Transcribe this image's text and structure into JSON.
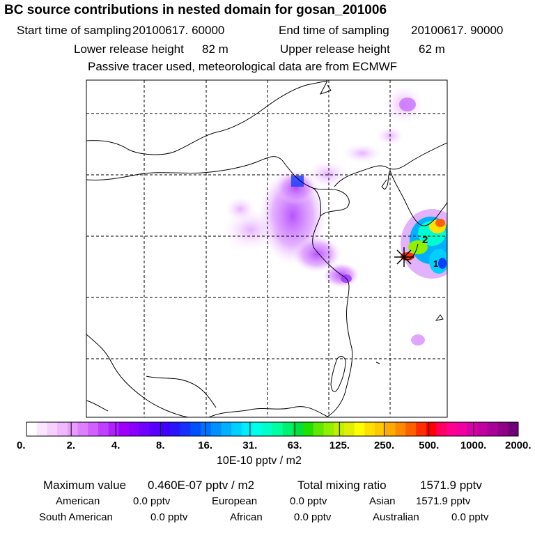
{
  "title": "BC  source contributions in nested domain for gosan_201006",
  "header": {
    "start_label": "Start time of sampling",
    "start_value": "20100617. 60000",
    "end_label": "End time of sampling",
    "end_value": "20100617. 90000",
    "lower_label": "Lower release height",
    "lower_value": "82 m",
    "upper_label": "Upper release height",
    "upper_value": "62 m",
    "note": "Passive tracer used, meteorological data are from ECMWF"
  },
  "map": {
    "site_marker": "receptor-star-icon",
    "labels": [
      "2",
      "1"
    ]
  },
  "colorbar": {
    "ticks": [
      "0.",
      "2.",
      "4.",
      "8.",
      "16.",
      "31.",
      "63.",
      "125.",
      "250.",
      "500.",
      "1000.",
      "2000."
    ],
    "colors": [
      "#ffffff",
      "#fbe6ff",
      "#f6d0ff",
      "#f0b8ff",
      "#e79cff",
      "#dd80ff",
      "#d060ff",
      "#c040ff",
      "#b020ff",
      "#9e00ff",
      "#8a00ff",
      "#7000ff",
      "#5a00ff",
      "#4000ff",
      "#2a14ff",
      "#1430ff",
      "#0050ff",
      "#0070ff",
      "#0090ff",
      "#00b0ff",
      "#00d0ff",
      "#00ecff",
      "#00ffe8",
      "#00ffc8",
      "#00ff9e",
      "#00f070",
      "#00e040",
      "#20e000",
      "#60e800",
      "#90f000",
      "#c0f000",
      "#e0f000",
      "#ffff00",
      "#ffe000",
      "#ffc800",
      "#ffaa00",
      "#ff8a00",
      "#ff6000",
      "#ff3000",
      "#ff0000",
      "#ff0060",
      "#ff0090",
      "#f000a0",
      "#d800a8",
      "#c000a0",
      "#a80098",
      "#900088",
      "#700078"
    ],
    "unit": "10E-10 pptv / m2"
  },
  "stats": {
    "max_label": "Maximum value",
    "max_value": "0.460E-07 pptv / m2",
    "total_label": "Total mixing ratio",
    "total_value": "1571.9 pptv",
    "regions": [
      {
        "name": "American",
        "value": "0.0 pptv"
      },
      {
        "name": "European",
        "value": "0.0 pptv"
      },
      {
        "name": "Asian",
        "value": "1571.9 pptv"
      },
      {
        "name": "South American",
        "value": "0.0 pptv"
      },
      {
        "name": "African",
        "value": "0.0 pptv"
      },
      {
        "name": "Australian",
        "value": "0.0 pptv"
      }
    ]
  }
}
